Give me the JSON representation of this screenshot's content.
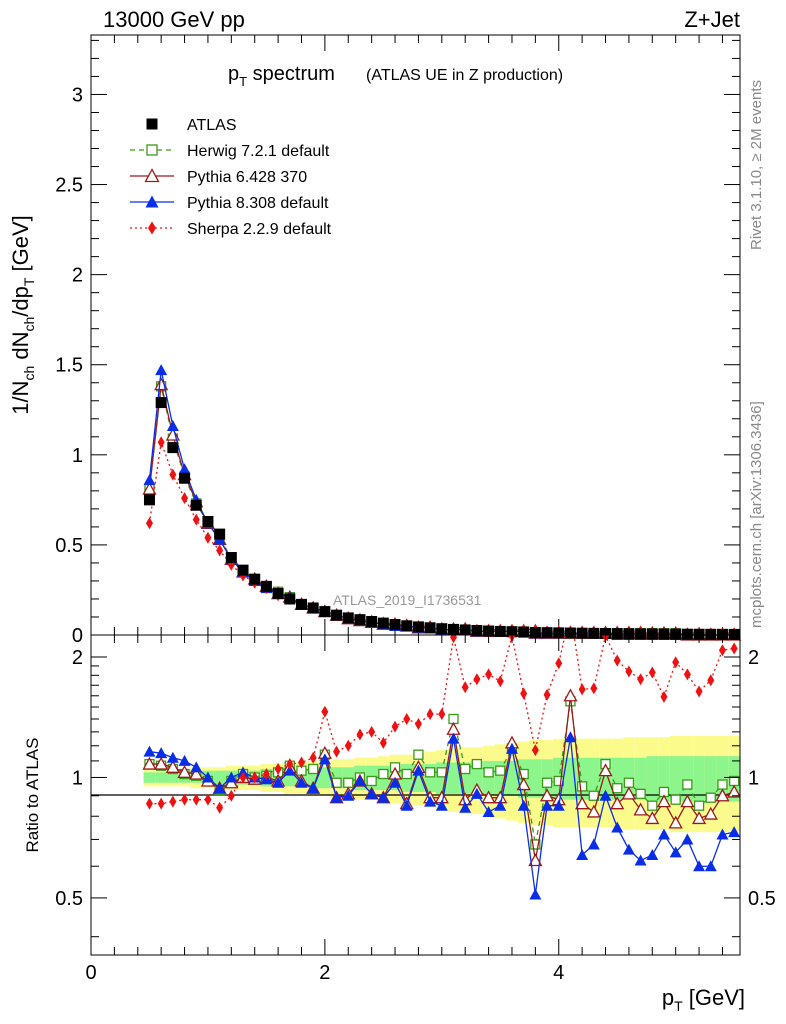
{
  "header": {
    "energy_label": "13000 GeV pp",
    "process_label": "Z+Jet"
  },
  "side_texts": {
    "rivet": "Rivet 3.1.10, ≥ 2M events",
    "mcplots": "mcplots.cern.ch [arXiv:1306.3436]"
  },
  "chart_data": [
    {
      "type": "line",
      "title": "p_T spectrum",
      "title_main": "p",
      "title_sub": "T",
      "title_rest": " spectrum",
      "subtitle": "(ATLAS UE in Z production)",
      "analysis_label": "ATLAS_2019_I1736531",
      "ylabel": "1/N_ch dN_ch/dp_T [GeV]",
      "ylim": [
        0,
        3.33
      ],
      "yticks": [
        "0",
        "0.5",
        "1",
        "1.5",
        "2",
        "2.5",
        "3"
      ],
      "xlim": [
        0,
        5.55
      ],
      "x": [
        0.5,
        0.6,
        0.7,
        0.8,
        0.9,
        1.0,
        1.1,
        1.2,
        1.3,
        1.4,
        1.5,
        1.6,
        1.7,
        1.8,
        1.9,
        2.0,
        2.1,
        2.2,
        2.3,
        2.4,
        2.5,
        2.6,
        2.7,
        2.8,
        2.9,
        3.0,
        3.1,
        3.2,
        3.3,
        3.4,
        3.5,
        3.6,
        3.7,
        3.8,
        3.9,
        4.0,
        4.1,
        4.2,
        4.3,
        4.4,
        4.5,
        4.6,
        4.7,
        4.8,
        4.9,
        5.0,
        5.1,
        5.2,
        5.3,
        5.4,
        5.5
      ],
      "legend_position": "top-left",
      "series": [
        {
          "name": "ATLAS",
          "color": "#000000",
          "marker": "square-filled",
          "values": [
            0.75,
            1.29,
            1.04,
            0.87,
            0.72,
            0.63,
            0.56,
            0.43,
            0.36,
            0.31,
            0.27,
            0.23,
            0.2,
            0.17,
            0.15,
            0.13,
            0.11,
            0.095,
            0.085,
            0.075,
            0.066,
            0.058,
            0.051,
            0.045,
            0.04,
            0.035,
            0.031,
            0.028,
            0.025,
            0.022,
            0.02,
            0.018,
            0.016,
            0.014,
            0.013,
            0.012,
            0.011,
            0.01,
            0.0092,
            0.0084,
            0.0077,
            0.007,
            0.0064,
            0.0059,
            0.0054,
            0.005,
            0.0046,
            0.0042,
            0.0039,
            0.0036,
            0.0033
          ]
        },
        {
          "name": "Herwig 7.2.1 default",
          "color": "#3a9a1a",
          "marker": "square-open",
          "dash": "5,4",
          "values": [
            0.81,
            1.38,
            1.09,
            0.88,
            0.73,
            0.62,
            0.55,
            0.42,
            0.36,
            0.31,
            0.27,
            0.24,
            0.21,
            0.17,
            0.15,
            0.13,
            0.11,
            0.09,
            0.08,
            0.07,
            0.06,
            0.06,
            0.05,
            0.04,
            0.04,
            0.03,
            0.03,
            0.03,
            0.02,
            0.02,
            0.02,
            0.02,
            0.02,
            0.01,
            0.01,
            0.01,
            0.01,
            0.01,
            0.01,
            0.01,
            0.01,
            0.01,
            0.01,
            0.01,
            0.01,
            0.01,
            0.0,
            0.0,
            0.0,
            0.0,
            0.0
          ]
        },
        {
          "name": "Pythia 6.428 370",
          "color": "#9b1a1a",
          "marker": "triangle-open",
          "values": [
            0.81,
            1.39,
            1.11,
            0.89,
            0.74,
            0.62,
            0.53,
            0.42,
            0.35,
            0.31,
            0.27,
            0.23,
            0.21,
            0.17,
            0.15,
            0.13,
            0.11,
            0.09,
            0.08,
            0.07,
            0.06,
            0.06,
            0.05,
            0.04,
            0.04,
            0.03,
            0.03,
            0.03,
            0.02,
            0.02,
            0.02,
            0.02,
            0.02,
            0.01,
            0.01,
            0.01,
            0.01,
            0.01,
            0.01,
            0.01,
            0.01,
            0.01,
            0.01,
            0.01,
            0.01,
            0.01,
            0.0,
            0.0,
            0.0,
            0.0,
            0.0
          ]
        },
        {
          "name": "Pythia 8.308 default",
          "color": "#0a2ee8",
          "marker": "triangle-filled",
          "values": [
            0.86,
            1.47,
            1.16,
            0.92,
            0.75,
            0.62,
            0.53,
            0.42,
            0.35,
            0.3,
            0.26,
            0.23,
            0.21,
            0.17,
            0.15,
            0.13,
            0.11,
            0.09,
            0.08,
            0.07,
            0.06,
            0.05,
            0.05,
            0.04,
            0.04,
            0.03,
            0.03,
            0.03,
            0.02,
            0.02,
            0.02,
            0.02,
            0.02,
            0.01,
            0.01,
            0.01,
            0.01,
            0.01,
            0.01,
            0.01,
            0.0,
            0.0,
            0.0,
            0.0,
            0.0,
            0.0,
            0.0,
            0.0,
            0.0,
            0.0,
            0.0
          ]
        },
        {
          "name": "Sherpa 2.2.9 default",
          "color": "#ee1111",
          "marker": "diamond-filled",
          "dash": "2,3",
          "values": [
            0.62,
            1.07,
            0.89,
            0.76,
            0.64,
            0.54,
            0.47,
            0.39,
            0.33,
            0.29,
            0.26,
            0.22,
            0.2,
            0.17,
            0.15,
            0.13,
            0.11,
            0.1,
            0.09,
            0.08,
            0.07,
            0.06,
            0.06,
            0.05,
            0.05,
            0.04,
            0.04,
            0.04,
            0.03,
            0.03,
            0.03,
            0.03,
            0.03,
            0.03,
            0.02,
            0.02,
            0.02,
            0.02,
            0.02,
            0.02,
            0.02,
            0.02,
            0.02,
            0.01,
            0.01,
            0.01,
            0.01,
            0.01,
            0.01,
            0.01,
            0.01
          ]
        }
      ]
    },
    {
      "type": "line",
      "ylabel": "Ratio to ATLAS",
      "xlabel": "p_T [GeV]",
      "xlabel_main": "p",
      "xlabel_sub": "T",
      "xlabel_rest": " [GeV]",
      "ylim": [
        0.36,
        2.27
      ],
      "yticks": [
        "0.5",
        "1",
        "2"
      ],
      "xticks": [
        "0",
        "2",
        "4"
      ],
      "xlim": [
        0,
        5.55
      ],
      "x": [
        0.5,
        0.6,
        0.7,
        0.8,
        0.9,
        1.0,
        1.1,
        1.2,
        1.3,
        1.4,
        1.5,
        1.6,
        1.7,
        1.8,
        1.9,
        2.0,
        2.1,
        2.2,
        2.3,
        2.4,
        2.5,
        2.6,
        2.7,
        2.8,
        2.9,
        3.0,
        3.1,
        3.2,
        3.3,
        3.4,
        3.5,
        3.6,
        3.7,
        3.8,
        3.9,
        4.0,
        4.1,
        4.2,
        4.3,
        4.4,
        4.5,
        4.6,
        4.7,
        4.8,
        4.9,
        5.0,
        5.1,
        5.2,
        5.3,
        5.4,
        5.5
      ],
      "band_inner_halfwidth": [
        0.03,
        0.03,
        0.03,
        0.03,
        0.03,
        0.04,
        0.04,
        0.04,
        0.04,
        0.04,
        0.05,
        0.05,
        0.05,
        0.05,
        0.06,
        0.06,
        0.06,
        0.06,
        0.07,
        0.07,
        0.07,
        0.07,
        0.08,
        0.08,
        0.08,
        0.09,
        0.09,
        0.09,
        0.1,
        0.1,
        0.1,
        0.1,
        0.11,
        0.11,
        0.11,
        0.12,
        0.12,
        0.12,
        0.12,
        0.12,
        0.12,
        0.12,
        0.12,
        0.13,
        0.13,
        0.13,
        0.13,
        0.13,
        0.13,
        0.13,
        0.13
      ],
      "band_outer_halfwidth": [
        0.05,
        0.05,
        0.05,
        0.05,
        0.06,
        0.06,
        0.06,
        0.07,
        0.07,
        0.07,
        0.08,
        0.08,
        0.09,
        0.09,
        0.1,
        0.1,
        0.11,
        0.11,
        0.12,
        0.12,
        0.13,
        0.14,
        0.14,
        0.15,
        0.16,
        0.17,
        0.18,
        0.19,
        0.19,
        0.2,
        0.21,
        0.22,
        0.23,
        0.24,
        0.24,
        0.25,
        0.25,
        0.25,
        0.25,
        0.25,
        0.25,
        0.26,
        0.26,
        0.26,
        0.26,
        0.27,
        0.27,
        0.27,
        0.27,
        0.27,
        0.27
      ],
      "series": [
        {
          "name": "Herwig 7.2.1 default",
          "color": "#3a9a1a",
          "marker": "square-open",
          "dash": "5,4",
          "values": [
            1.08,
            1.07,
            1.05,
            1.02,
            1.01,
            0.98,
            0.93,
            0.98,
            1.02,
            1.0,
            1.01,
            1.03,
            1.07,
            1.04,
            1.05,
            1.14,
            0.97,
            0.97,
            1.0,
            0.98,
            1.02,
            1.06,
            1.02,
            1.14,
            1.03,
            1.03,
            1.4,
            1.05,
            1.08,
            1.03,
            1.04,
            1.18,
            1.02,
            0.68,
            0.97,
            0.98,
            1.55,
            0.95,
            0.9,
            1.08,
            0.94,
            0.97,
            0.91,
            0.85,
            0.92,
            0.88,
            0.96,
            0.85,
            0.89,
            0.96,
            0.98
          ]
        },
        {
          "name": "Pythia 6.428 370",
          "color": "#9b1a1a",
          "marker": "triangle-open",
          "values": [
            1.08,
            1.08,
            1.06,
            1.03,
            1.02,
            0.98,
            0.94,
            0.97,
            1.0,
            0.99,
            1.0,
            0.98,
            1.06,
            0.98,
            0.94,
            1.15,
            0.89,
            0.91,
            0.98,
            0.91,
            0.89,
            1.02,
            0.86,
            1.06,
            0.89,
            0.89,
            1.32,
            0.88,
            0.93,
            0.89,
            0.89,
            1.22,
            0.96,
            0.62,
            0.9,
            0.88,
            1.6,
            0.86,
            0.82,
            1.04,
            0.86,
            0.91,
            0.83,
            0.79,
            0.87,
            0.77,
            0.87,
            0.79,
            0.81,
            0.9,
            0.92
          ]
        },
        {
          "name": "Pythia 8.308 default",
          "color": "#0a2ee8",
          "marker": "triangle-filled",
          "values": [
            1.16,
            1.15,
            1.12,
            1.1,
            1.06,
            1.0,
            0.94,
            1.0,
            1.03,
            1.0,
            0.99,
            0.97,
            1.04,
            0.97,
            0.94,
            1.11,
            0.89,
            0.9,
            0.98,
            0.91,
            0.89,
            0.97,
            0.85,
            1.04,
            0.87,
            0.85,
            1.25,
            0.84,
            0.91,
            0.82,
            0.85,
            1.18,
            0.85,
            0.51,
            0.85,
            0.85,
            1.26,
            0.64,
            0.68,
            0.9,
            0.75,
            0.66,
            0.62,
            0.64,
            0.72,
            0.65,
            0.7,
            0.6,
            0.6,
            0.72,
            0.73
          ]
        },
        {
          "name": "Sherpa 2.2.9 default",
          "color": "#ee1111",
          "marker": "diamond-filled",
          "dash": "2,3",
          "values": [
            0.86,
            0.86,
            0.87,
            0.88,
            0.88,
            0.88,
            0.84,
            0.9,
            1.0,
            1.0,
            1.02,
            1.05,
            1.08,
            1.09,
            1.12,
            1.46,
            1.16,
            1.2,
            1.28,
            1.3,
            1.22,
            1.34,
            1.4,
            1.36,
            1.44,
            1.44,
            2.24,
            1.68,
            1.76,
            1.81,
            1.74,
            2.26,
            1.62,
            1.17,
            1.61,
            1.93,
            2.6,
            1.66,
            1.67,
            2.26,
            1.96,
            1.84,
            1.76,
            1.83,
            1.59,
            1.94,
            1.81,
            1.64,
            1.75,
            2.08,
            2.1
          ]
        }
      ]
    }
  ]
}
